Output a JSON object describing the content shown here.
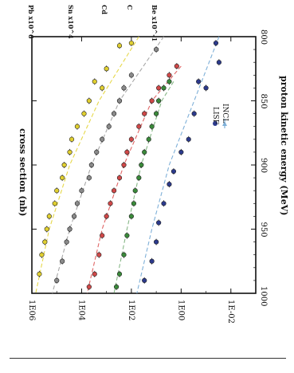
{
  "chart_data": {
    "type": "scatter",
    "orientation": "rotated-90-clockwise",
    "xlabel": "proton kinetic energy (MeV)",
    "ylabel": "cross section (nb)",
    "x_ticks": [
      "800",
      "850",
      "900",
      "950",
      "1000"
    ],
    "y_ticks": [
      "1E-02",
      "1E00",
      "1E02",
      "1E04",
      "1E06"
    ],
    "xlim": [
      800,
      1000
    ],
    "ylim_log10": [
      -3,
      6
    ],
    "y_scale": "log",
    "legend": {
      "position": "bottom-right",
      "entries": [
        "LISF",
        "INCL"
      ]
    },
    "series": [
      {
        "name": "Pb x10^6",
        "color": "#e0cf30",
        "values": [
          [
            805,
            100
          ],
          [
            807,
            300
          ],
          [
            825,
            1000
          ],
          [
            835,
            3000
          ],
          [
            840,
            1500
          ],
          [
            850,
            5000
          ],
          [
            860,
            8000
          ],
          [
            870,
            15000
          ],
          [
            880,
            25000
          ],
          [
            890,
            30000
          ],
          [
            900,
            50000
          ],
          [
            910,
            60000
          ],
          [
            920,
            100000
          ],
          [
            930,
            120000
          ],
          [
            940,
            200000
          ],
          [
            950,
            250000
          ],
          [
            960,
            300000
          ],
          [
            970,
            400000
          ],
          [
            985,
            500000
          ]
        ]
      },
      {
        "name": "Sn x10^4",
        "color": "#8a8a8a",
        "values": [
          [
            810,
            10
          ],
          [
            830,
            100
          ],
          [
            840,
            200
          ],
          [
            850,
            300
          ],
          [
            860,
            500
          ],
          [
            870,
            800
          ],
          [
            880,
            1500
          ],
          [
            890,
            2500
          ],
          [
            900,
            4000
          ],
          [
            910,
            5000
          ],
          [
            920,
            10000
          ],
          [
            930,
            15000
          ],
          [
            940,
            20000
          ],
          [
            950,
            30000
          ],
          [
            960,
            40000
          ],
          [
            975,
            60000
          ],
          [
            990,
            100000
          ]
        ]
      },
      {
        "name": "Cd",
        "color": "#d04848",
        "values": [
          [
            823,
            1.5
          ],
          [
            830,
            3
          ],
          [
            840,
            8
          ],
          [
            850,
            15
          ],
          [
            860,
            30
          ],
          [
            870,
            50
          ],
          [
            880,
            100
          ],
          [
            890,
            150
          ],
          [
            900,
            200
          ],
          [
            910,
            300
          ],
          [
            920,
            500
          ],
          [
            930,
            700
          ],
          [
            940,
            1000
          ],
          [
            955,
            1500
          ],
          [
            970,
            2000
          ],
          [
            985,
            3000
          ],
          [
            995,
            5000
          ]
        ]
      },
      {
        "name": "C",
        "color": "#3a8a3a",
        "values": [
          [
            835,
            3
          ],
          [
            840,
            5
          ],
          [
            850,
            8
          ],
          [
            860,
            10
          ],
          [
            870,
            15
          ],
          [
            880,
            20
          ],
          [
            890,
            30
          ],
          [
            900,
            40
          ],
          [
            910,
            50
          ],
          [
            920,
            70
          ],
          [
            930,
            80
          ],
          [
            940,
            100
          ],
          [
            955,
            150
          ],
          [
            970,
            200
          ],
          [
            985,
            300
          ],
          [
            995,
            400
          ]
        ]
      },
      {
        "name": "Be x10^-1",
        "color": "#2c3a8c",
        "values": [
          [
            805,
            0.04
          ],
          [
            820,
            0.03
          ],
          [
            835,
            0.2
          ],
          [
            840,
            0.1
          ],
          [
            860,
            0.3
          ],
          [
            880,
            0.5
          ],
          [
            890,
            1
          ],
          [
            905,
            2
          ],
          [
            915,
            3
          ],
          [
            930,
            5
          ],
          [
            945,
            8
          ],
          [
            960,
            10
          ],
          [
            975,
            15
          ],
          [
            990,
            30
          ]
        ]
      }
    ],
    "model_curves": [
      {
        "color": "#e6d84a",
        "x": [
          800,
          850,
          900,
          950,
          1000
        ],
        "y": [
          50,
          2000,
          30000,
          200000,
          700000
        ]
      },
      {
        "color": "#a8a8a8",
        "x": [
          800,
          850,
          900,
          950,
          1000
        ],
        "y": [
          5,
          300,
          4000,
          30000,
          150000
        ]
      },
      {
        "color": "#e06666",
        "x": [
          823,
          850,
          900,
          950,
          1000
        ],
        "y": [
          1,
          15,
          200,
          1500,
          6000
        ]
      },
      {
        "color": "#88b888",
        "x": [
          835,
          850,
          900,
          950,
          1000
        ],
        "y": [
          2,
          6,
          40,
          150,
          500
        ]
      },
      {
        "color": "#7fb0d8",
        "x": [
          800,
          850,
          900,
          950,
          1000
        ],
        "y": [
          0.03,
          0.3,
          3,
          15,
          60
        ]
      }
    ]
  }
}
